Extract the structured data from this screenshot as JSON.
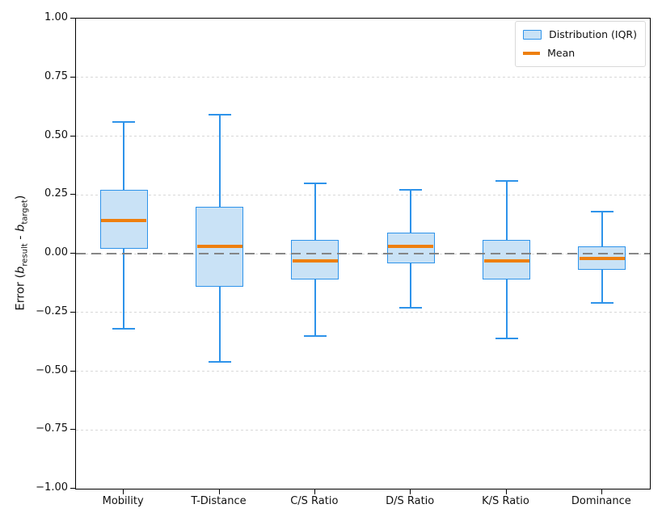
{
  "colors": {
    "box_fill": "#c9e2f6",
    "box_edge": "#2e93ea",
    "mean_line": "#ee7f0e",
    "gridline": "#d8d8d8",
    "zero_line": "#7d7d7d",
    "spine": "#000000"
  },
  "legend": {
    "items": [
      {
        "label": "Distribution (IQR)",
        "swatch": "box-swatch"
      },
      {
        "label": "Mean",
        "swatch": "line-swatch"
      }
    ]
  },
  "ylabel_parts": {
    "prefix": "Error (",
    "var": "b",
    "sub_result": "result",
    "dash": " - ",
    "sub_target": "target",
    "suffix": ")"
  },
  "chart_data": {
    "type": "boxplot",
    "title": "",
    "xlabel": "",
    "ylabel": "Error (b_result - b_target)",
    "ylim": [
      -1.0,
      1.0
    ],
    "grid": "horizontal-dashed",
    "zero_reference_line": 0.0,
    "legend_position": "upper right",
    "ytick_values": [
      1.0,
      0.75,
      0.5,
      0.25,
      0.0,
      -0.25,
      -0.5,
      -0.75,
      -1.0
    ],
    "ytick_labels": [
      "1.00",
      "0.75",
      "0.50",
      "0.25",
      "0.00",
      "−0.25",
      "−0.50",
      "−0.75",
      "−1.00"
    ],
    "categories": [
      "Mobility",
      "T-Distance",
      "C/S Ratio",
      "D/S Ratio",
      "K/S Ratio",
      "Dominance"
    ],
    "boxes": [
      {
        "category": "Mobility",
        "whisker_low": -0.32,
        "q1": 0.02,
        "mean": 0.14,
        "q3": 0.27,
        "whisker_high": 0.56
      },
      {
        "category": "T-Distance",
        "whisker_low": -0.46,
        "q1": -0.14,
        "mean": 0.03,
        "q3": 0.2,
        "whisker_high": 0.59
      },
      {
        "category": "C/S Ratio",
        "whisker_low": -0.35,
        "q1": -0.11,
        "mean": -0.03,
        "q3": 0.06,
        "whisker_high": 0.3
      },
      {
        "category": "D/S Ratio",
        "whisker_low": -0.23,
        "q1": -0.04,
        "mean": 0.03,
        "q3": 0.09,
        "whisker_high": 0.27
      },
      {
        "category": "K/S Ratio",
        "whisker_low": -0.36,
        "q1": -0.11,
        "mean": -0.03,
        "q3": 0.06,
        "whisker_high": 0.31
      },
      {
        "category": "Dominance",
        "whisker_low": -0.21,
        "q1": -0.07,
        "mean": -0.02,
        "q3": 0.03,
        "whisker_high": 0.18
      }
    ]
  }
}
